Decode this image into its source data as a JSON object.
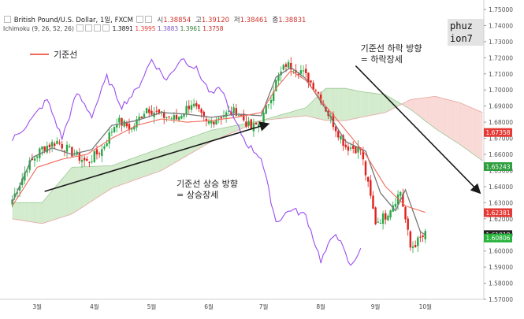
{
  "header": {
    "symbol": "British Pound/U.S. Dollar, 1일, FXCM",
    "ohlc": [
      {
        "label": "시",
        "value": "1.38854"
      },
      {
        "label": "고",
        "value": "1.39120"
      },
      {
        "label": "저",
        "value": "1.38461"
      },
      {
        "label": "종",
        "value": "1.38831"
      }
    ],
    "indicator_name": "Ichimoku (9, 26, 52, 26)",
    "indicator_values": [
      {
        "value": "1.3891",
        "color": "#111111"
      },
      {
        "value": "1.3995",
        "color": "#e53935"
      },
      {
        "value": "1.3883",
        "color": "#7e57c2"
      },
      {
        "value": "1.3961",
        "color": "#2e7d32"
      },
      {
        "value": "1.3758",
        "color": "#c62828"
      }
    ]
  },
  "watermark": {
    "line1": "phuz",
    "line2": "ion7"
  },
  "colors": {
    "up": "#27a844",
    "down": "#e0201c",
    "kijun": "#f06a5a",
    "tenkan": "#777777",
    "chikou": "#9b4ff0",
    "cloud_bull": "#cbe8c4",
    "cloud_bear": "#f8d2cf",
    "arrow": "#1a1a1a"
  },
  "chart_data": {
    "type": "candlestick",
    "x_axis_labels": [
      "3월",
      "4월",
      "5월",
      "6월",
      "7월",
      "8월",
      "9월",
      "10월"
    ],
    "y_axis": {
      "ylim": [
        1.57,
        1.75
      ],
      "ticks": [
        "1.57000",
        "1.58000",
        "1.59000",
        "1.60000",
        "1.61000",
        "1.62000",
        "1.63000",
        "1.64000",
        "1.65000",
        "1.66000",
        "1.67000",
        "1.68000",
        "1.69000",
        "1.70000",
        "1.71000",
        "1.72000",
        "1.73000",
        "1.74000",
        "1.75000"
      ]
    },
    "price_labels": [
      {
        "value": 1.67358,
        "text": "1.67358",
        "color": "#e53935"
      },
      {
        "value": 1.65243,
        "text": "1.65243",
        "color": "#2e9e3e"
      },
      {
        "value": 1.62381,
        "text": "1.62381",
        "color": "#e53935"
      },
      {
        "value": 1.61018,
        "text": "1.61018",
        "color": "#222222"
      },
      {
        "value": 1.60806,
        "text": "1.60806",
        "color": "#26b33a"
      }
    ],
    "legend": {
      "label": "기준선"
    },
    "annotations": [
      {
        "line1": "기준선 상승 방향",
        "line2": "= 상승장세"
      },
      {
        "line1": "기준선 하락 방향",
        "line2": "= 하락장세"
      }
    ],
    "close_anchors": [
      [
        0,
        1.632
      ],
      [
        6,
        1.652
      ],
      [
        12,
        1.664
      ],
      [
        18,
        1.668
      ],
      [
        24,
        1.661
      ],
      [
        30,
        1.655
      ],
      [
        36,
        1.663
      ],
      [
        42,
        1.681
      ],
      [
        48,
        1.676
      ],
      [
        54,
        1.689
      ],
      [
        60,
        1.684
      ],
      [
        66,
        1.682
      ],
      [
        72,
        1.692
      ],
      [
        78,
        1.679
      ],
      [
        84,
        1.684
      ],
      [
        90,
        1.687
      ],
      [
        96,
        1.676
      ],
      [
        100,
        1.68
      ],
      [
        106,
        1.705
      ],
      [
        110,
        1.716
      ],
      [
        116,
        1.712
      ],
      [
        122,
        1.701
      ],
      [
        128,
        1.682
      ],
      [
        134,
        1.665
      ],
      [
        140,
        1.663
      ],
      [
        146,
        1.618
      ],
      [
        150,
        1.622
      ],
      [
        156,
        1.637
      ],
      [
        160,
        1.602
      ],
      [
        166,
        1.61
      ]
    ],
    "kijun_anchors": [
      [
        0,
        1.628
      ],
      [
        10,
        1.652
      ],
      [
        20,
        1.657
      ],
      [
        30,
        1.66
      ],
      [
        40,
        1.67
      ],
      [
        50,
        1.678
      ],
      [
        60,
        1.682
      ],
      [
        70,
        1.68
      ],
      [
        80,
        1.681
      ],
      [
        90,
        1.683
      ],
      [
        100,
        1.686
      ],
      [
        106,
        1.701
      ],
      [
        112,
        1.712
      ],
      [
        118,
        1.706
      ],
      [
        126,
        1.69
      ],
      [
        134,
        1.675
      ],
      [
        142,
        1.66
      ],
      [
        150,
        1.64
      ],
      [
        158,
        1.628
      ],
      [
        166,
        1.624
      ]
    ],
    "tenkan_anchors": [
      [
        0,
        1.63
      ],
      [
        8,
        1.658
      ],
      [
        16,
        1.664
      ],
      [
        24,
        1.66
      ],
      [
        32,
        1.663
      ],
      [
        40,
        1.678
      ],
      [
        50,
        1.681
      ],
      [
        60,
        1.686
      ],
      [
        70,
        1.685
      ],
      [
        80,
        1.683
      ],
      [
        90,
        1.685
      ],
      [
        100,
        1.684
      ],
      [
        106,
        1.708
      ],
      [
        112,
        1.714
      ],
      [
        118,
        1.707
      ],
      [
        126,
        1.688
      ],
      [
        134,
        1.668
      ],
      [
        142,
        1.662
      ],
      [
        148,
        1.636
      ],
      [
        154,
        1.625
      ],
      [
        158,
        1.638
      ],
      [
        164,
        1.612
      ],
      [
        166,
        1.61
      ]
    ],
    "senkou_a_anchors": [
      [
        0,
        1.63
      ],
      [
        12,
        1.63
      ],
      [
        24,
        1.652
      ],
      [
        40,
        1.653
      ],
      [
        60,
        1.664
      ],
      [
        80,
        1.675
      ],
      [
        100,
        1.681
      ],
      [
        118,
        1.689
      ],
      [
        126,
        1.701
      ],
      [
        134,
        1.701
      ],
      [
        140,
        1.699
      ],
      [
        150,
        1.697
      ],
      [
        160,
        1.688
      ],
      [
        170,
        1.676
      ],
      [
        180,
        1.666
      ],
      [
        189,
        1.656
      ]
    ],
    "senkou_b_anchors": [
      [
        0,
        1.62
      ],
      [
        12,
        1.617
      ],
      [
        24,
        1.623
      ],
      [
        40,
        1.639
      ],
      [
        60,
        1.65
      ],
      [
        80,
        1.668
      ],
      [
        100,
        1.681
      ],
      [
        118,
        1.684
      ],
      [
        126,
        1.681
      ],
      [
        134,
        1.681
      ],
      [
        140,
        1.683
      ],
      [
        150,
        1.686
      ],
      [
        160,
        1.694
      ],
      [
        170,
        1.696
      ],
      [
        180,
        1.692
      ],
      [
        189,
        1.686
      ]
    ],
    "chikou_anchors": [
      [
        0,
        1.669
      ],
      [
        8,
        1.682
      ],
      [
        14,
        1.694
      ],
      [
        20,
        1.67
      ],
      [
        26,
        1.698
      ],
      [
        32,
        1.684
      ],
      [
        38,
        1.708
      ],
      [
        44,
        1.69
      ],
      [
        50,
        1.7
      ],
      [
        56,
        1.719
      ],
      [
        62,
        1.706
      ],
      [
        68,
        1.72
      ],
      [
        74,
        1.713
      ],
      [
        80,
        1.697
      ],
      [
        84,
        1.701
      ],
      [
        88,
        1.685
      ],
      [
        94,
        1.667
      ],
      [
        100,
        1.658
      ],
      [
        106,
        1.618
      ],
      [
        112,
        1.626
      ],
      [
        118,
        1.622
      ],
      [
        124,
        1.594
      ],
      [
        130,
        1.612
      ],
      [
        136,
        1.59
      ],
      [
        140,
        1.602
      ]
    ]
  }
}
